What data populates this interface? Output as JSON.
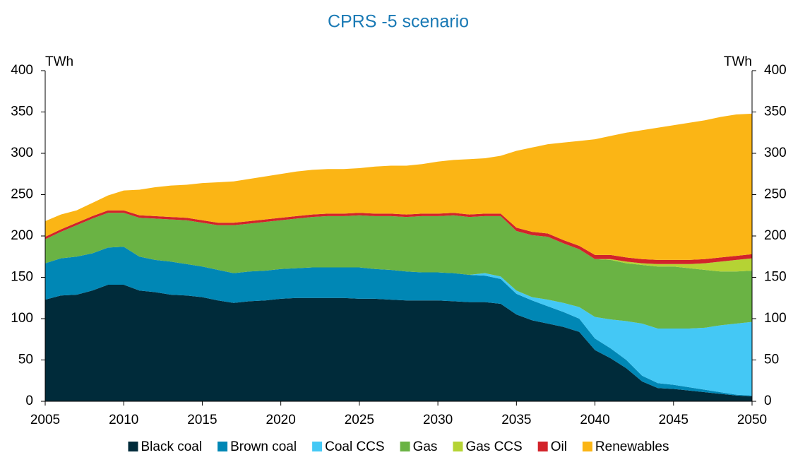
{
  "chart_data": {
    "type": "stacked_area",
    "title": "CPRS -5 scenario",
    "y_label": "TWh",
    "y2_label": "TWh",
    "x": [
      2005,
      2006,
      2007,
      2008,
      2009,
      2010,
      2011,
      2012,
      2013,
      2014,
      2015,
      2016,
      2017,
      2018,
      2019,
      2020,
      2021,
      2022,
      2023,
      2024,
      2025,
      2026,
      2027,
      2028,
      2029,
      2030,
      2031,
      2032,
      2033,
      2034,
      2035,
      2036,
      2037,
      2038,
      2039,
      2040,
      2041,
      2042,
      2043,
      2044,
      2045,
      2046,
      2047,
      2048,
      2049,
      2050
    ],
    "xlim": [
      2005,
      2050
    ],
    "xticks": [
      2005,
      2010,
      2015,
      2020,
      2025,
      2030,
      2035,
      2040,
      2045,
      2050
    ],
    "ylim": [
      0,
      400
    ],
    "yticks": [
      0,
      50,
      100,
      150,
      200,
      250,
      300,
      350,
      400
    ],
    "legend": "bottom",
    "series": [
      {
        "name": "Black coal",
        "color": "#002b3a",
        "values": [
          123,
          128,
          129,
          134,
          141,
          141,
          134,
          132,
          129,
          128,
          126,
          122,
          119,
          121,
          122,
          124,
          125,
          125,
          125,
          125,
          124,
          124,
          123,
          122,
          122,
          122,
          121,
          120,
          120,
          118,
          105,
          98,
          94,
          90,
          84,
          62,
          52,
          40,
          24,
          16,
          15,
          13,
          11,
          9,
          7,
          6
        ]
      },
      {
        "name": "Brown coal",
        "color": "#0087b5",
        "values": [
          44,
          45,
          46,
          45,
          45,
          46,
          41,
          39,
          40,
          38,
          37,
          37,
          36,
          36,
          36,
          36,
          36,
          37,
          37,
          37,
          38,
          36,
          36,
          35,
          34,
          34,
          34,
          33,
          32,
          30,
          25,
          24,
          21,
          18,
          16,
          14,
          12,
          10,
          7,
          6,
          5,
          4,
          3,
          2,
          1,
          1
        ]
      },
      {
        "name": "Coal CCS",
        "color": "#44c8f5",
        "values": [
          0,
          0,
          0,
          0,
          0,
          0,
          0,
          0,
          0,
          0,
          0,
          0,
          0,
          0,
          0,
          0,
          0,
          0,
          0,
          0,
          0,
          0,
          0,
          0,
          0,
          0,
          0,
          0,
          3,
          3,
          4,
          4,
          8,
          11,
          14,
          26,
          35,
          47,
          63,
          66,
          68,
          71,
          75,
          81,
          86,
          89
        ]
      },
      {
        "name": "Gas",
        "color": "#6ab344",
        "values": [
          29,
          32,
          38,
          42,
          42,
          41,
          47,
          50,
          51,
          53,
          53,
          54,
          58,
          58,
          59,
          59,
          60,
          61,
          62,
          62,
          63,
          64,
          65,
          66,
          68,
          68,
          70,
          70,
          69,
          73,
          72,
          75,
          76,
          72,
          70,
          70,
          72,
          70,
          71,
          75,
          75,
          73,
          70,
          65,
          63,
          62
        ]
      },
      {
        "name": "Gas CCS",
        "color": "#b5d334",
        "values": [
          0,
          0,
          0,
          0,
          0,
          0,
          0,
          0,
          0,
          0,
          0,
          0,
          0,
          0,
          0,
          0,
          0,
          0,
          0,
          0,
          0,
          0,
          0,
          0,
          0,
          0,
          0,
          0,
          0,
          0,
          0,
          0,
          0,
          0,
          0,
          0,
          1,
          2,
          2,
          3,
          3,
          5,
          8,
          12,
          14,
          15
        ]
      },
      {
        "name": "Oil",
        "color": "#d2232a",
        "values": [
          3,
          3,
          3,
          3,
          3,
          3,
          3,
          3,
          3,
          3,
          3,
          3,
          3,
          3,
          3,
          3,
          3,
          3,
          3,
          3,
          3,
          3,
          3,
          3,
          3,
          3,
          3,
          3,
          3,
          3,
          4,
          4,
          4,
          4,
          4,
          5,
          5,
          5,
          5,
          5,
          5,
          5,
          5,
          5,
          5,
          5
        ]
      },
      {
        "name": "Renewables",
        "color": "#fbb515",
        "values": [
          19,
          18,
          15,
          16,
          18,
          24,
          31,
          35,
          38,
          40,
          45,
          49,
          50,
          51,
          52,
          53,
          54,
          54,
          54,
          54,
          54,
          57,
          58,
          59,
          60,
          63,
          64,
          67,
          67,
          70,
          93,
          102,
          108,
          118,
          127,
          140,
          144,
          151,
          156,
          160,
          163,
          166,
          168,
          170,
          171,
          170
        ]
      }
    ]
  }
}
